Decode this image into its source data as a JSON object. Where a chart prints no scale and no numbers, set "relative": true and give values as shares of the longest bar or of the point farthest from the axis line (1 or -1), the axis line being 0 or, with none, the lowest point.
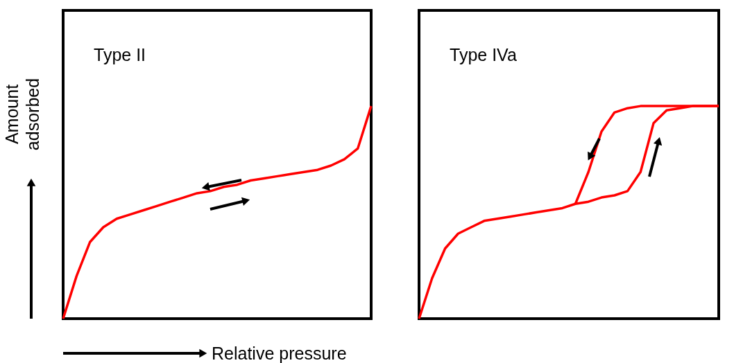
{
  "chart_data": [
    {
      "type": "line",
      "relative": true,
      "xlabel": "Relative pressure",
      "ylabel": "Amount adsorbed",
      "annotations": [
        "Type II"
      ],
      "categories": [
        null,
        null,
        null,
        null,
        null,
        null,
        null,
        null,
        null,
        null,
        null,
        null,
        null,
        null,
        null,
        null,
        null,
        null,
        null,
        null,
        null,
        null,
        null,
        null
      ],
      "series": [
        {
          "color": "#ff0000",
          "values": [
            0,
            0.2,
            0.36,
            0.43,
            0.47,
            0.49,
            0.51,
            0.53,
            0.55,
            0.57,
            0.59,
            0.6,
            0.62,
            0.63,
            0.65,
            0.66,
            0.67,
            0.68,
            0.69,
            0.7,
            0.72,
            0.75,
            0.8,
            1
          ]
        }
      ]
    },
    {
      "type": "line",
      "relative": true,
      "annotations": [
        "Type IVa"
      ],
      "categories": [
        null,
        null,
        null,
        null,
        null,
        null,
        null,
        null,
        null,
        null,
        null,
        null,
        null,
        null,
        null,
        null,
        null,
        null,
        null,
        null,
        null,
        null,
        null,
        null
      ],
      "series": [
        {
          "color": "#ff0000",
          "values": [
            0,
            0.19,
            0.33,
            0.4,
            0.43,
            0.46,
            0.47,
            0.48,
            0.49,
            0.5,
            0.51,
            0.52,
            0.54,
            0.55,
            0.57,
            0.58,
            0.6,
            0.69,
            0.92,
            0.98,
            0.99,
            1,
            1,
            1
          ]
        },
        {
          "color": "#ff0000",
          "values": [
            null,
            null,
            null,
            null,
            null,
            null,
            null,
            null,
            null,
            null,
            null,
            null,
            0.54,
            0.69,
            0.88,
            0.97,
            0.99,
            1,
            1,
            1,
            1,
            1,
            1,
            1
          ]
        }
      ]
    }
  ]
}
